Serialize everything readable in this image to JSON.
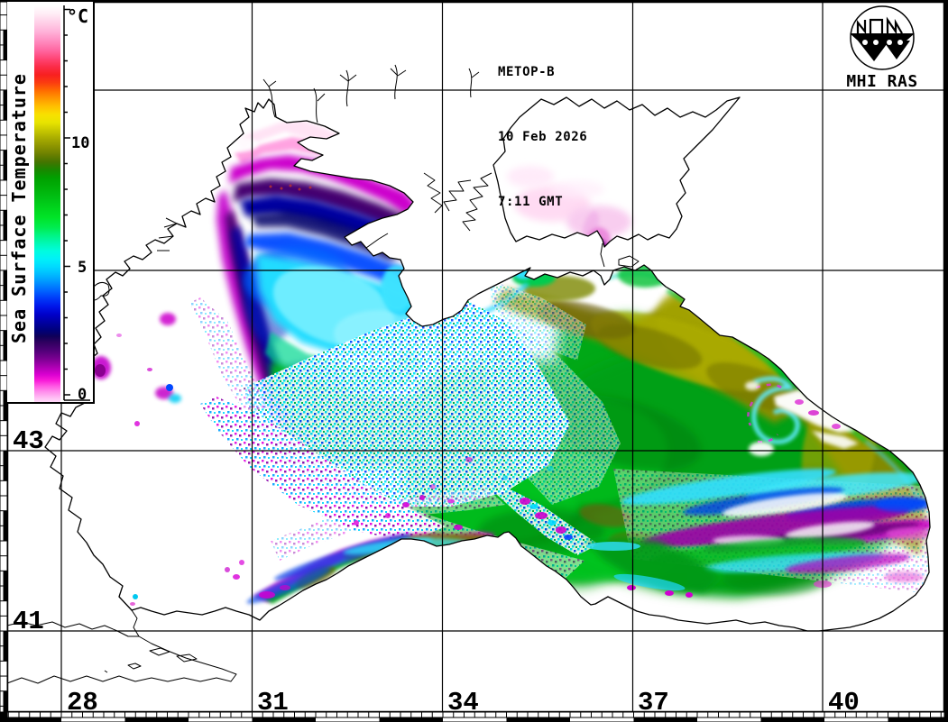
{
  "header": {
    "satellite": "METOP-B",
    "date": "10 Feb 2026",
    "time": "7:11 GMT"
  },
  "logo": {
    "caption": "MHI RAS"
  },
  "colorbar": {
    "title": "Sea Surface Temperature",
    "unit": "°C",
    "scale_min_c": 0,
    "scale_max_c": 15,
    "ticks": [
      {
        "label": "10"
      },
      {
        "label": "5"
      },
      {
        "label": "0"
      }
    ],
    "gradient": [
      {
        "p": 0,
        "c": "#ffffff"
      },
      {
        "p": 2,
        "c": "#ffeef6"
      },
      {
        "p": 4,
        "c": "#ffd4ea"
      },
      {
        "p": 6.5,
        "c": "#ffb4da"
      },
      {
        "p": 9,
        "c": "#ff8cc0"
      },
      {
        "p": 11.5,
        "c": "#ff649e"
      },
      {
        "p": 13.5,
        "c": "#ff4474"
      },
      {
        "p": 15.5,
        "c": "#fb2c48"
      },
      {
        "p": 17.5,
        "c": "#f82020"
      },
      {
        "p": 19.5,
        "c": "#fb3c10"
      },
      {
        "p": 21.5,
        "c": "#ff6c00"
      },
      {
        "p": 23.5,
        "c": "#ff9800"
      },
      {
        "p": 25.5,
        "c": "#ffc000"
      },
      {
        "p": 27.5,
        "c": "#f8e000"
      },
      {
        "p": 29.5,
        "c": "#e8e400"
      },
      {
        "p": 31.5,
        "c": "#c8c800"
      },
      {
        "p": 33.5,
        "c": "#a8ac00"
      },
      {
        "p": 35.5,
        "c": "#8c9400"
      },
      {
        "p": 37.5,
        "c": "#6c8000"
      },
      {
        "p": 39.5,
        "c": "#447400"
      },
      {
        "p": 41.5,
        "c": "#188800"
      },
      {
        "p": 43.5,
        "c": "#00a000"
      },
      {
        "p": 46,
        "c": "#00b008"
      },
      {
        "p": 48.5,
        "c": "#00c014"
      },
      {
        "p": 51,
        "c": "#00d41c"
      },
      {
        "p": 53.5,
        "c": "#00e428"
      },
      {
        "p": 56,
        "c": "#00ec50"
      },
      {
        "p": 58,
        "c": "#00f484"
      },
      {
        "p": 60,
        "c": "#00f8b4"
      },
      {
        "p": 62,
        "c": "#00fce0"
      },
      {
        "p": 64,
        "c": "#00f0f8"
      },
      {
        "p": 66,
        "c": "#00d8ff"
      },
      {
        "p": 68,
        "c": "#00b8ff"
      },
      {
        "p": 70,
        "c": "#0090ff"
      },
      {
        "p": 72,
        "c": "#0064ff"
      },
      {
        "p": 74,
        "c": "#0038f8"
      },
      {
        "p": 76,
        "c": "#0014e8"
      },
      {
        "p": 78,
        "c": "#0000c8"
      },
      {
        "p": 80,
        "c": "#0000a0"
      },
      {
        "p": 82,
        "c": "#000078"
      },
      {
        "p": 83.5,
        "c": "#100058"
      },
      {
        "p": 85,
        "c": "#300060"
      },
      {
        "p": 87,
        "c": "#500078"
      },
      {
        "p": 89,
        "c": "#780090"
      },
      {
        "p": 91,
        "c": "#a800b0"
      },
      {
        "p": 93,
        "c": "#d800d0"
      },
      {
        "p": 94.5,
        "c": "#f818d8"
      },
      {
        "p": 96,
        "c": "#ff58e4"
      },
      {
        "p": 97.5,
        "c": "#ff90ec"
      },
      {
        "p": 99,
        "c": "#ffc0f4"
      },
      {
        "p": 100,
        "c": "#ffd8f8"
      }
    ]
  },
  "grid": {
    "lat_labels": [
      {
        "text": "43"
      },
      {
        "text": "41"
      }
    ],
    "lon_labels": [
      {
        "text": "28"
      },
      {
        "text": "31"
      },
      {
        "text": "34"
      },
      {
        "text": "37"
      },
      {
        "text": "40"
      }
    ],
    "lat_gridlines_deg": [
      47,
      45,
      43,
      41
    ],
    "lon_gridlines_deg": [
      28,
      31,
      34,
      37,
      40
    ]
  }
}
